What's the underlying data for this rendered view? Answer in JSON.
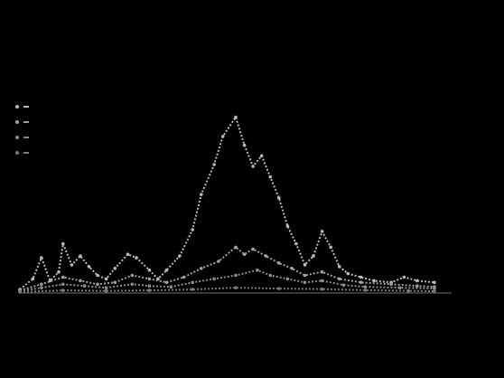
{
  "chart_data": {
    "type": "line",
    "title": "",
    "subtitle": "",
    "source": "",
    "footnote": "",
    "x_range": [
      0,
      100
    ],
    "ylim": [
      0,
      11000
    ],
    "y_ticks": [
      {
        "value": 0,
        "label": ""
      },
      {
        "value": 2000,
        "label": ""
      },
      {
        "value": 4000,
        "label": ""
      },
      {
        "value": 6000,
        "label": ""
      },
      {
        "value": 8000,
        "label": ""
      },
      {
        "value": 10000,
        "label": ""
      }
    ],
    "x_ticks": [
      {
        "x": 8,
        "label": ""
      },
      {
        "x": 25,
        "label": ""
      },
      {
        "x": 43,
        "label": ""
      },
      {
        "x": 61,
        "label": ""
      },
      {
        "x": 79,
        "label": ""
      },
      {
        "x": 96,
        "label": ""
      }
    ],
    "grid": false,
    "legend_position": "top-left",
    "series": [
      {
        "name": "",
        "color": "#b8b8b8",
        "points": [
          [
            0,
            200
          ],
          [
            3,
            800
          ],
          [
            5,
            2000
          ],
          [
            7,
            700
          ],
          [
            9,
            1200
          ],
          [
            10,
            2800
          ],
          [
            12,
            1600
          ],
          [
            14,
            2100
          ],
          [
            16,
            1500
          ],
          [
            18,
            1000
          ],
          [
            20,
            800
          ],
          [
            22,
            1400
          ],
          [
            25,
            2200
          ],
          [
            27,
            2000
          ],
          [
            30,
            1300
          ],
          [
            32,
            800
          ],
          [
            34,
            1300
          ],
          [
            37,
            2100
          ],
          [
            40,
            3600
          ],
          [
            42,
            5600
          ],
          [
            45,
            7300
          ],
          [
            47,
            8900
          ],
          [
            50,
            10000
          ],
          [
            52,
            8400
          ],
          [
            54,
            7200
          ],
          [
            56,
            7800
          ],
          [
            58,
            6600
          ],
          [
            60,
            5400
          ],
          [
            62,
            3800
          ],
          [
            64,
            2800
          ],
          [
            66,
            1600
          ],
          [
            68,
            2100
          ],
          [
            70,
            3500
          ],
          [
            72,
            2600
          ],
          [
            74,
            1500
          ],
          [
            76,
            1100
          ],
          [
            79,
            900
          ],
          [
            82,
            700
          ],
          [
            86,
            600
          ],
          [
            89,
            900
          ],
          [
            92,
            700
          ],
          [
            96,
            600
          ]
        ]
      },
      {
        "name": "",
        "color": "#a0a0a0",
        "points": [
          [
            0,
            150
          ],
          [
            5,
            500
          ],
          [
            10,
            900
          ],
          [
            14,
            700
          ],
          [
            18,
            500
          ],
          [
            22,
            600
          ],
          [
            26,
            1000
          ],
          [
            30,
            800
          ],
          [
            34,
            600
          ],
          [
            38,
            900
          ],
          [
            42,
            1400
          ],
          [
            46,
            1800
          ],
          [
            50,
            2600
          ],
          [
            52,
            2200
          ],
          [
            54,
            2500
          ],
          [
            57,
            2100
          ],
          [
            60,
            1700
          ],
          [
            63,
            1400
          ],
          [
            66,
            1000
          ],
          [
            70,
            1200
          ],
          [
            74,
            800
          ],
          [
            79,
            600
          ],
          [
            86,
            500
          ],
          [
            92,
            400
          ],
          [
            96,
            350
          ]
        ]
      },
      {
        "name": "",
        "color": "#8c8c8c",
        "points": [
          [
            0,
            100
          ],
          [
            5,
            300
          ],
          [
            10,
            500
          ],
          [
            15,
            400
          ],
          [
            20,
            300
          ],
          [
            26,
            500
          ],
          [
            30,
            400
          ],
          [
            35,
            350
          ],
          [
            40,
            600
          ],
          [
            45,
            800
          ],
          [
            50,
            1000
          ],
          [
            55,
            1300
          ],
          [
            58,
            1000
          ],
          [
            62,
            800
          ],
          [
            66,
            600
          ],
          [
            70,
            700
          ],
          [
            75,
            450
          ],
          [
            80,
            350
          ],
          [
            88,
            300
          ],
          [
            96,
            250
          ]
        ]
      },
      {
        "name": "",
        "color": "#7a7a7a",
        "points": [
          [
            0,
            50
          ],
          [
            10,
            150
          ],
          [
            20,
            120
          ],
          [
            30,
            150
          ],
          [
            40,
            200
          ],
          [
            50,
            300
          ],
          [
            60,
            250
          ],
          [
            70,
            220
          ],
          [
            80,
            160
          ],
          [
            90,
            120
          ],
          [
            96,
            100
          ]
        ]
      }
    ]
  }
}
